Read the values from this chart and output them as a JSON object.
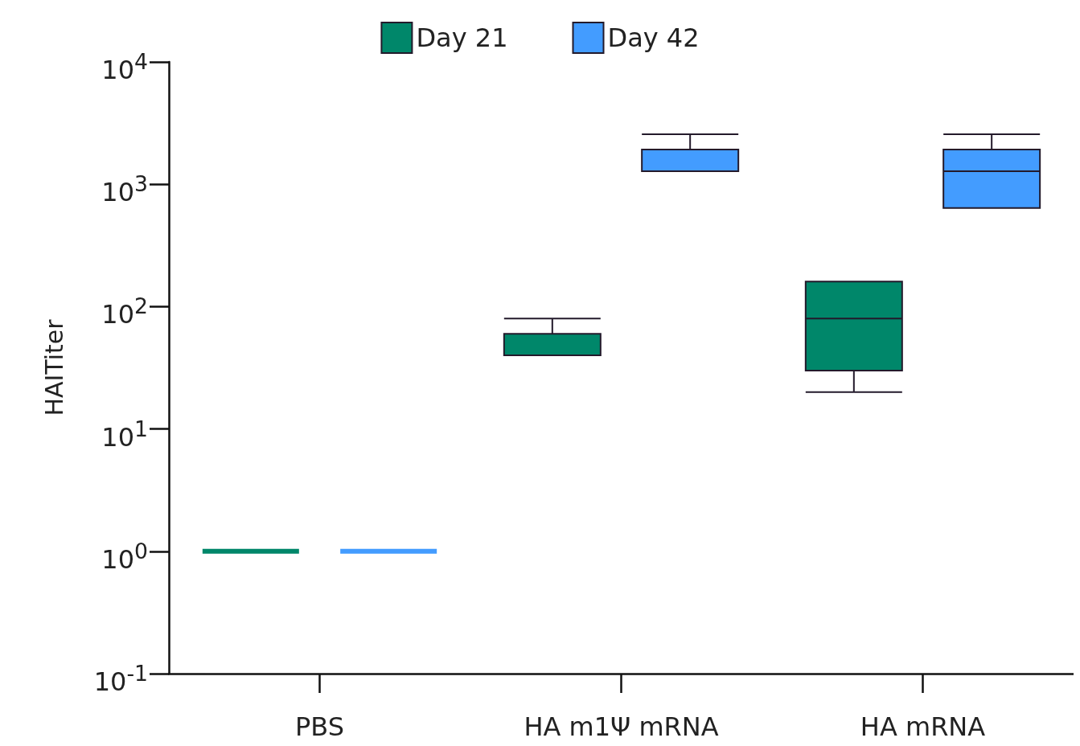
{
  "chart_data": {
    "type": "box",
    "ylabel": "HAITiter",
    "categories": [
      "PBS",
      "HA m1Ψ mRNA",
      "HA mRNA"
    ],
    "log": "y",
    "ylim": [
      0.1,
      10000
    ],
    "yticks": [
      {
        "value": 0.1,
        "label": "10$^{-1}$"
      },
      {
        "value": 1,
        "label": "10$^{0}$"
      },
      {
        "value": 10,
        "label": "10$^{1}$"
      },
      {
        "value": 100,
        "label": "10$^{2}$"
      },
      {
        "value": 1000,
        "label": "10$^{3}$"
      },
      {
        "value": 10000,
        "label": "10$^{4}$"
      }
    ],
    "legend": "top",
    "grid": false,
    "series": [
      {
        "name": "Day 21",
        "color": "#00876a",
        "boxes": [
          {
            "low": 1,
            "q1": 1,
            "median": 1,
            "q3": 1,
            "high": 1
          },
          {
            "low": 40,
            "q1": 40,
            "median": 40,
            "q3": 60,
            "high": 80
          },
          {
            "low": 20,
            "q1": 30,
            "median": 80,
            "q3": 160,
            "high": 160
          }
        ]
      },
      {
        "name": "Day 42",
        "color": "#439cff",
        "boxes": [
          {
            "low": 1,
            "q1": 1,
            "median": 1,
            "q3": 1,
            "high": 1
          },
          {
            "low": 1280,
            "q1": 1280,
            "median": 1280,
            "q3": 1920,
            "high": 2560
          },
          {
            "low": 640,
            "q1": 640,
            "median": 1280,
            "q3": 1920,
            "high": 2560
          }
        ]
      }
    ]
  }
}
